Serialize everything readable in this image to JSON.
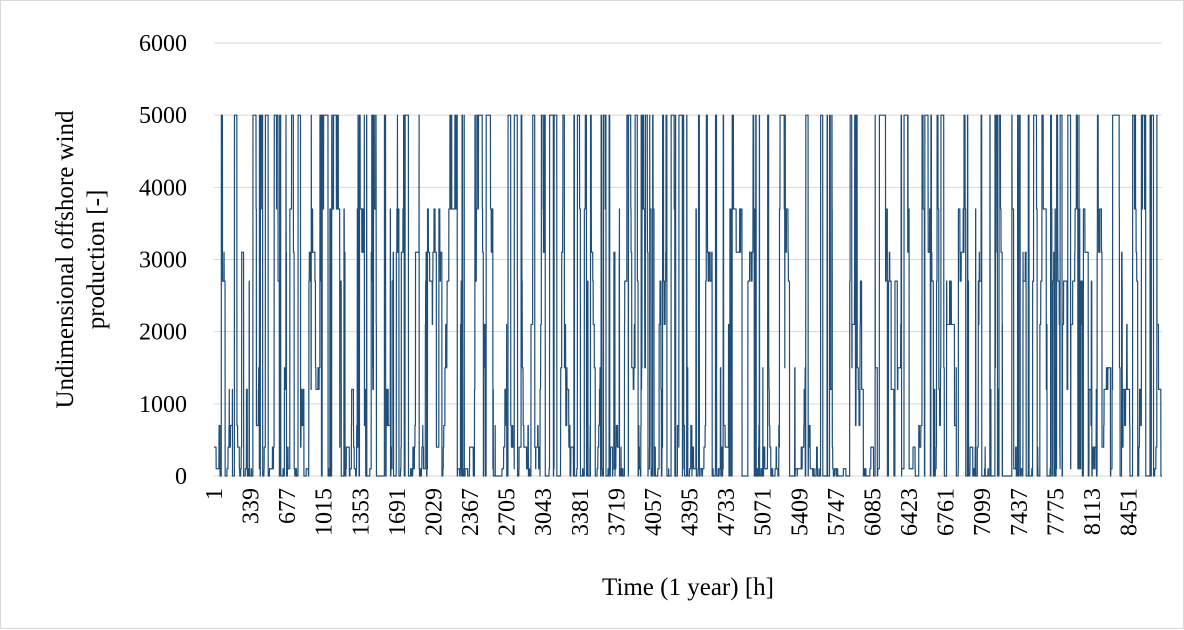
{
  "chart_data": {
    "type": "line",
    "xlabel": "Time (1 year) [h]",
    "ylabel_lines": [
      "Undimensional offshore wind",
      "production [-]"
    ],
    "ylim": [
      0,
      6000
    ],
    "y_ticks": [
      "0",
      "1000",
      "2000",
      "3000",
      "4000",
      "5000",
      "6000"
    ],
    "x_range": [
      1,
      8760
    ],
    "x_tick_labels": [
      "1",
      "339",
      "677",
      "1015",
      "1353",
      "1691",
      "2029",
      "2367",
      "2705",
      "3043",
      "3381",
      "3719",
      "4057",
      "4395",
      "4733",
      "5071",
      "5409",
      "5747",
      "6085",
      "6423",
      "6761",
      "7099",
      "7437",
      "7775",
      "8113",
      "8451"
    ],
    "grid": "horizontal",
    "series": [
      {
        "color": "#1f4e79",
        "generator": {
          "type": "pseudo-random hourly wind production",
          "levels": [
            0,
            100,
            400,
            700,
            1200,
            1500,
            2100,
            2700,
            3100,
            3700,
            5000
          ],
          "points": 8760
        }
      }
    ]
  }
}
